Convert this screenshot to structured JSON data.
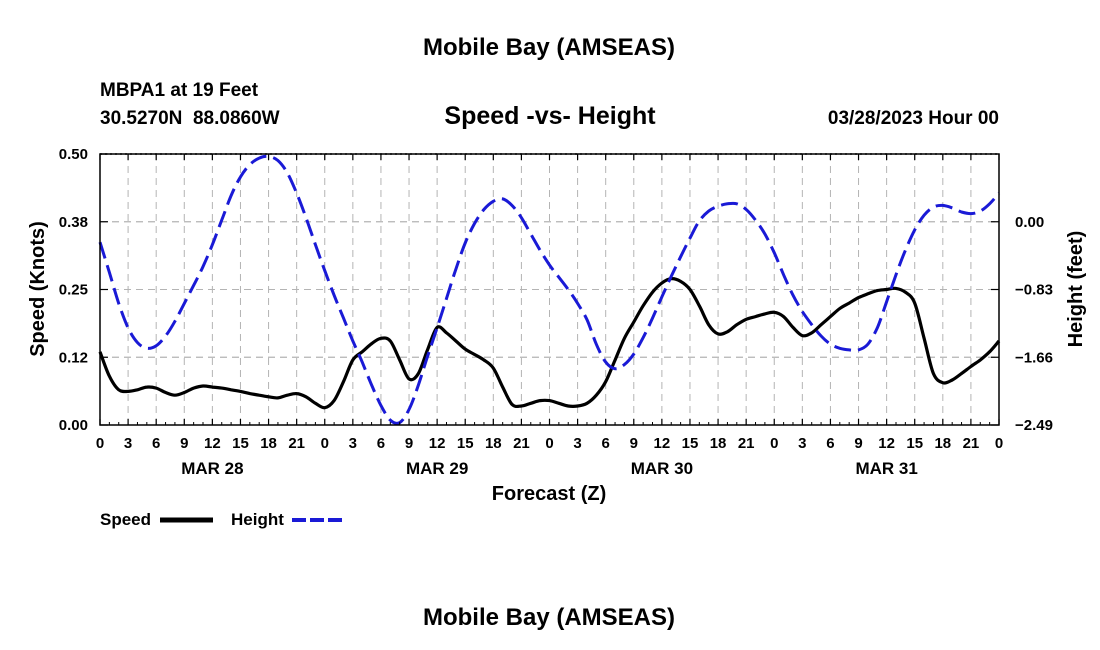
{
  "chart_data": {
    "type": "line",
    "title": "Mobile Bay (AMSEAS)",
    "subtitle": "Speed -vs- Height",
    "station_line": "MBPA1 at 19 Feet",
    "coords_line": "30.5270N  88.0860W",
    "date_line": "03/28/2023 Hour 00",
    "xlabel": "Forecast (Z)",
    "ylabel_left": "Speed (Knots)",
    "ylabel_right": "Height (feet)",
    "x_range_hours": [
      0,
      96
    ],
    "x_tick_step_hours": 3,
    "x_tick_labels": [
      "0",
      "3",
      "6",
      "9",
      "12",
      "15",
      "18",
      "21",
      "0",
      "3",
      "6",
      "9",
      "12",
      "15",
      "18",
      "21",
      "0",
      "3",
      "6",
      "9",
      "12",
      "15",
      "18",
      "21",
      "0",
      "3",
      "6",
      "9",
      "12",
      "15",
      "18",
      "21",
      "0"
    ],
    "day_labels": [
      {
        "label": "MAR 28",
        "hour": 12
      },
      {
        "label": "MAR 29",
        "hour": 36
      },
      {
        "label": "MAR 30",
        "hour": 60
      },
      {
        "label": "MAR 31",
        "hour": 84
      }
    ],
    "y_left_range": [
      0,
      0.5
    ],
    "y_left_ticks": [
      {
        "value": 0.0,
        "label": "0.00"
      },
      {
        "value": 0.125,
        "label": "0.12"
      },
      {
        "value": 0.25,
        "label": "0.25"
      },
      {
        "value": 0.375,
        "label": "0.38"
      },
      {
        "value": 0.5,
        "label": "0.50"
      }
    ],
    "y_right_range": [
      -2.49,
      0.83
    ],
    "y_right_ticks": [
      {
        "value": -2.49,
        "label": "−2.49"
      },
      {
        "value": -1.66,
        "label": "−1.66"
      },
      {
        "value": -0.83,
        "label": "−0.83"
      },
      {
        "value": 0.0,
        "label": "0.00"
      }
    ],
    "legend_position": "bottom-left",
    "footer_title": "Mobile Bay (AMSEAS)",
    "series": [
      {
        "name": "Speed",
        "axis": "left",
        "color": "#000000",
        "style": "solid",
        "x": [
          0,
          1,
          2,
          3,
          4,
          5,
          6,
          7,
          8,
          9,
          10,
          11,
          12,
          13,
          14,
          15,
          16,
          17,
          18,
          19,
          20,
          21,
          22,
          23,
          24,
          25,
          26,
          27,
          28,
          29,
          30,
          31,
          32,
          33,
          34,
          35,
          36,
          37,
          38,
          39,
          40,
          41,
          42,
          43,
          44,
          45,
          46,
          47,
          48,
          49,
          50,
          51,
          52,
          53,
          54,
          55,
          56,
          57,
          58,
          59,
          60,
          61,
          62,
          63,
          64,
          65,
          66,
          67,
          68,
          69,
          70,
          71,
          72,
          73,
          74,
          75,
          76,
          77,
          78,
          79,
          80,
          81,
          82,
          83,
          84,
          85,
          86,
          87,
          88,
          89,
          90,
          91,
          92,
          93,
          94,
          95,
          96
        ],
        "values": [
          0.135,
          0.09,
          0.065,
          0.062,
          0.065,
          0.07,
          0.068,
          0.06,
          0.055,
          0.06,
          0.068,
          0.072,
          0.07,
          0.068,
          0.065,
          0.062,
          0.058,
          0.055,
          0.052,
          0.05,
          0.055,
          0.058,
          0.052,
          0.04,
          0.032,
          0.045,
          0.08,
          0.12,
          0.135,
          0.15,
          0.16,
          0.155,
          0.12,
          0.085,
          0.095,
          0.14,
          0.18,
          0.17,
          0.155,
          0.14,
          0.13,
          0.12,
          0.105,
          0.07,
          0.038,
          0.035,
          0.04,
          0.045,
          0.045,
          0.04,
          0.035,
          0.035,
          0.04,
          0.055,
          0.08,
          0.12,
          0.16,
          0.19,
          0.22,
          0.245,
          0.262,
          0.27,
          0.265,
          0.25,
          0.22,
          0.185,
          0.168,
          0.172,
          0.185,
          0.195,
          0.2,
          0.205,
          0.208,
          0.2,
          0.18,
          0.165,
          0.17,
          0.185,
          0.2,
          0.215,
          0.225,
          0.235,
          0.242,
          0.248,
          0.25,
          0.252,
          0.245,
          0.225,
          0.16,
          0.095,
          0.078,
          0.083,
          0.095,
          0.108,
          0.12,
          0.135,
          0.155
        ]
      },
      {
        "name": "Height",
        "axis": "right",
        "color": "#1a1ad6",
        "style": "dashed",
        "x": [
          0,
          1,
          2,
          3,
          4,
          5,
          6,
          7,
          8,
          9,
          10,
          11,
          12,
          13,
          14,
          15,
          16,
          17,
          18,
          19,
          20,
          21,
          22,
          23,
          24,
          25,
          26,
          27,
          28,
          29,
          30,
          31,
          32,
          33,
          34,
          35,
          36,
          37,
          38,
          39,
          40,
          41,
          42,
          43,
          44,
          45,
          46,
          47,
          48,
          49,
          50,
          51,
          52,
          53,
          54,
          55,
          56,
          57,
          58,
          59,
          60,
          61,
          62,
          63,
          64,
          65,
          66,
          67,
          68,
          69,
          70,
          71,
          72,
          73,
          74,
          75,
          76,
          77,
          78,
          79,
          80,
          81,
          82,
          83,
          84,
          85,
          86,
          87,
          88,
          89,
          90,
          91,
          92,
          93,
          94,
          95,
          96
        ],
        "values": [
          -0.25,
          -0.62,
          -1.0,
          -1.3,
          -1.48,
          -1.55,
          -1.52,
          -1.4,
          -1.22,
          -1.0,
          -0.78,
          -0.55,
          -0.28,
          0.02,
          0.32,
          0.55,
          0.7,
          0.78,
          0.8,
          0.75,
          0.6,
          0.35,
          0.05,
          -0.28,
          -0.6,
          -0.9,
          -1.18,
          -1.46,
          -1.72,
          -2.0,
          -2.25,
          -2.43,
          -2.46,
          -2.3,
          -2.0,
          -1.64,
          -1.3,
          -0.94,
          -0.58,
          -0.26,
          -0.02,
          0.15,
          0.25,
          0.28,
          0.2,
          0.05,
          -0.15,
          -0.35,
          -0.53,
          -0.68,
          -0.83,
          -1.0,
          -1.2,
          -1.5,
          -1.72,
          -1.8,
          -1.75,
          -1.62,
          -1.42,
          -1.18,
          -0.92,
          -0.67,
          -0.43,
          -0.2,
          0.01,
          0.13,
          0.19,
          0.22,
          0.22,
          0.15,
          0.02,
          -0.15,
          -0.38,
          -0.65,
          -0.9,
          -1.1,
          -1.26,
          -1.4,
          -1.5,
          -1.55,
          -1.57,
          -1.57,
          -1.5,
          -1.3,
          -0.98,
          -0.65,
          -0.35,
          -0.1,
          0.08,
          0.18,
          0.2,
          0.17,
          0.12,
          0.1,
          0.13,
          0.22,
          0.35
        ]
      }
    ]
  }
}
